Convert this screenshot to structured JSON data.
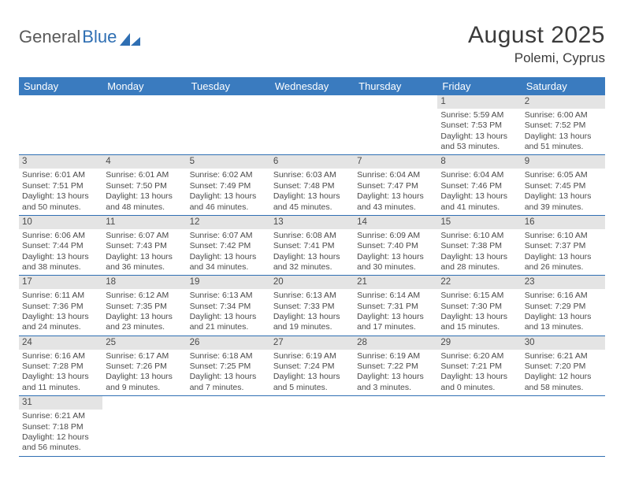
{
  "logo": {
    "part1": "General",
    "part2": "Blue"
  },
  "title": {
    "month_year": "August 2025",
    "location": "Polemi, Cyprus"
  },
  "colors": {
    "header_bg": "#3a7bbf",
    "header_text": "#ffffff",
    "daynum_bg": "#e4e4e4",
    "row_border": "#2f6fb3",
    "body_text": "#4a4a4a",
    "logo_blue": "#2f6fb3",
    "background": "#ffffff"
  },
  "typography": {
    "title_fontsize_pt": 22,
    "location_fontsize_pt": 13,
    "weekday_fontsize_pt": 10,
    "cell_fontsize_pt": 8
  },
  "weekdays": [
    "Sunday",
    "Monday",
    "Tuesday",
    "Wednesday",
    "Thursday",
    "Friday",
    "Saturday"
  ],
  "weeks": [
    [
      null,
      null,
      null,
      null,
      null,
      {
        "n": "1",
        "sunrise": "Sunrise: 5:59 AM",
        "sunset": "Sunset: 7:53 PM",
        "day1": "Daylight: 13 hours",
        "day2": "and 53 minutes."
      },
      {
        "n": "2",
        "sunrise": "Sunrise: 6:00 AM",
        "sunset": "Sunset: 7:52 PM",
        "day1": "Daylight: 13 hours",
        "day2": "and 51 minutes."
      }
    ],
    [
      {
        "n": "3",
        "sunrise": "Sunrise: 6:01 AM",
        "sunset": "Sunset: 7:51 PM",
        "day1": "Daylight: 13 hours",
        "day2": "and 50 minutes."
      },
      {
        "n": "4",
        "sunrise": "Sunrise: 6:01 AM",
        "sunset": "Sunset: 7:50 PM",
        "day1": "Daylight: 13 hours",
        "day2": "and 48 minutes."
      },
      {
        "n": "5",
        "sunrise": "Sunrise: 6:02 AM",
        "sunset": "Sunset: 7:49 PM",
        "day1": "Daylight: 13 hours",
        "day2": "and 46 minutes."
      },
      {
        "n": "6",
        "sunrise": "Sunrise: 6:03 AM",
        "sunset": "Sunset: 7:48 PM",
        "day1": "Daylight: 13 hours",
        "day2": "and 45 minutes."
      },
      {
        "n": "7",
        "sunrise": "Sunrise: 6:04 AM",
        "sunset": "Sunset: 7:47 PM",
        "day1": "Daylight: 13 hours",
        "day2": "and 43 minutes."
      },
      {
        "n": "8",
        "sunrise": "Sunrise: 6:04 AM",
        "sunset": "Sunset: 7:46 PM",
        "day1": "Daylight: 13 hours",
        "day2": "and 41 minutes."
      },
      {
        "n": "9",
        "sunrise": "Sunrise: 6:05 AM",
        "sunset": "Sunset: 7:45 PM",
        "day1": "Daylight: 13 hours",
        "day2": "and 39 minutes."
      }
    ],
    [
      {
        "n": "10",
        "sunrise": "Sunrise: 6:06 AM",
        "sunset": "Sunset: 7:44 PM",
        "day1": "Daylight: 13 hours",
        "day2": "and 38 minutes."
      },
      {
        "n": "11",
        "sunrise": "Sunrise: 6:07 AM",
        "sunset": "Sunset: 7:43 PM",
        "day1": "Daylight: 13 hours",
        "day2": "and 36 minutes."
      },
      {
        "n": "12",
        "sunrise": "Sunrise: 6:07 AM",
        "sunset": "Sunset: 7:42 PM",
        "day1": "Daylight: 13 hours",
        "day2": "and 34 minutes."
      },
      {
        "n": "13",
        "sunrise": "Sunrise: 6:08 AM",
        "sunset": "Sunset: 7:41 PM",
        "day1": "Daylight: 13 hours",
        "day2": "and 32 minutes."
      },
      {
        "n": "14",
        "sunrise": "Sunrise: 6:09 AM",
        "sunset": "Sunset: 7:40 PM",
        "day1": "Daylight: 13 hours",
        "day2": "and 30 minutes."
      },
      {
        "n": "15",
        "sunrise": "Sunrise: 6:10 AM",
        "sunset": "Sunset: 7:38 PM",
        "day1": "Daylight: 13 hours",
        "day2": "and 28 minutes."
      },
      {
        "n": "16",
        "sunrise": "Sunrise: 6:10 AM",
        "sunset": "Sunset: 7:37 PM",
        "day1": "Daylight: 13 hours",
        "day2": "and 26 minutes."
      }
    ],
    [
      {
        "n": "17",
        "sunrise": "Sunrise: 6:11 AM",
        "sunset": "Sunset: 7:36 PM",
        "day1": "Daylight: 13 hours",
        "day2": "and 24 minutes."
      },
      {
        "n": "18",
        "sunrise": "Sunrise: 6:12 AM",
        "sunset": "Sunset: 7:35 PM",
        "day1": "Daylight: 13 hours",
        "day2": "and 23 minutes."
      },
      {
        "n": "19",
        "sunrise": "Sunrise: 6:13 AM",
        "sunset": "Sunset: 7:34 PM",
        "day1": "Daylight: 13 hours",
        "day2": "and 21 minutes."
      },
      {
        "n": "20",
        "sunrise": "Sunrise: 6:13 AM",
        "sunset": "Sunset: 7:33 PM",
        "day1": "Daylight: 13 hours",
        "day2": "and 19 minutes."
      },
      {
        "n": "21",
        "sunrise": "Sunrise: 6:14 AM",
        "sunset": "Sunset: 7:31 PM",
        "day1": "Daylight: 13 hours",
        "day2": "and 17 minutes."
      },
      {
        "n": "22",
        "sunrise": "Sunrise: 6:15 AM",
        "sunset": "Sunset: 7:30 PM",
        "day1": "Daylight: 13 hours",
        "day2": "and 15 minutes."
      },
      {
        "n": "23",
        "sunrise": "Sunrise: 6:16 AM",
        "sunset": "Sunset: 7:29 PM",
        "day1": "Daylight: 13 hours",
        "day2": "and 13 minutes."
      }
    ],
    [
      {
        "n": "24",
        "sunrise": "Sunrise: 6:16 AM",
        "sunset": "Sunset: 7:28 PM",
        "day1": "Daylight: 13 hours",
        "day2": "and 11 minutes."
      },
      {
        "n": "25",
        "sunrise": "Sunrise: 6:17 AM",
        "sunset": "Sunset: 7:26 PM",
        "day1": "Daylight: 13 hours",
        "day2": "and 9 minutes."
      },
      {
        "n": "26",
        "sunrise": "Sunrise: 6:18 AM",
        "sunset": "Sunset: 7:25 PM",
        "day1": "Daylight: 13 hours",
        "day2": "and 7 minutes."
      },
      {
        "n": "27",
        "sunrise": "Sunrise: 6:19 AM",
        "sunset": "Sunset: 7:24 PM",
        "day1": "Daylight: 13 hours",
        "day2": "and 5 minutes."
      },
      {
        "n": "28",
        "sunrise": "Sunrise: 6:19 AM",
        "sunset": "Sunset: 7:22 PM",
        "day1": "Daylight: 13 hours",
        "day2": "and 3 minutes."
      },
      {
        "n": "29",
        "sunrise": "Sunrise: 6:20 AM",
        "sunset": "Sunset: 7:21 PM",
        "day1": "Daylight: 13 hours",
        "day2": "and 0 minutes."
      },
      {
        "n": "30",
        "sunrise": "Sunrise: 6:21 AM",
        "sunset": "Sunset: 7:20 PM",
        "day1": "Daylight: 12 hours",
        "day2": "and 58 minutes."
      }
    ],
    [
      {
        "n": "31",
        "sunrise": "Sunrise: 6:21 AM",
        "sunset": "Sunset: 7:18 PM",
        "day1": "Daylight: 12 hours",
        "day2": "and 56 minutes."
      },
      null,
      null,
      null,
      null,
      null,
      null
    ]
  ]
}
